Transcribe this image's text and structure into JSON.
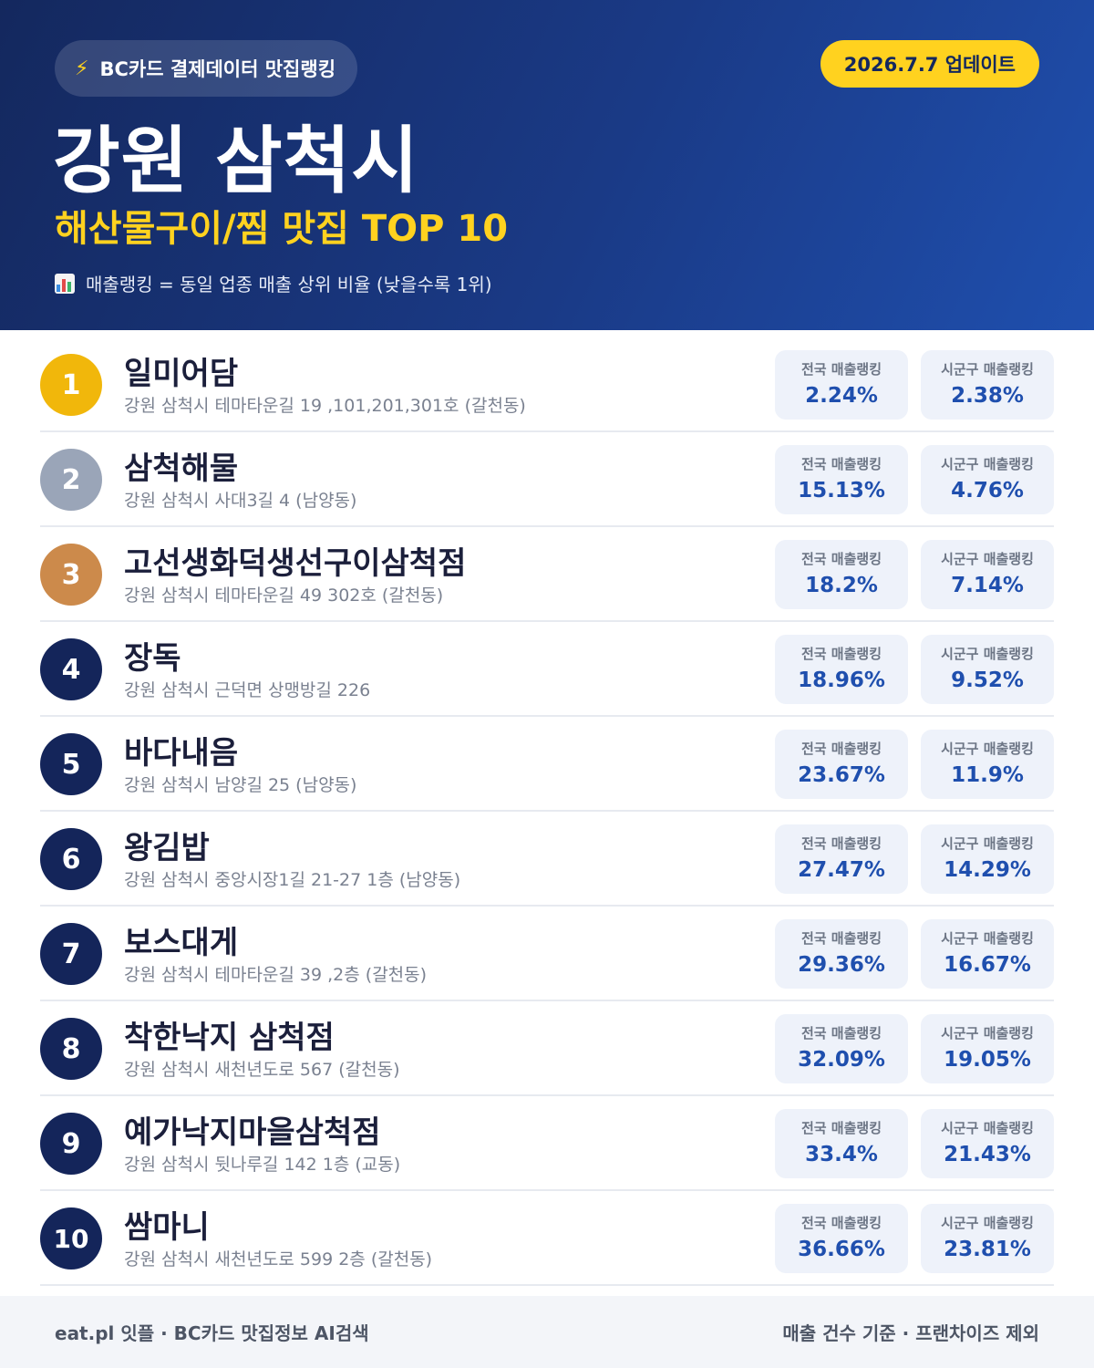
{
  "header": {
    "chip_label": "BC카드 결제데이터 맛집랭킹",
    "chip_icon": "lightning-bolt-icon",
    "update_label": "2026.7.7 업데이트",
    "city": "강원 삼척시",
    "subtitle": "해산물구이/찜 맛집 TOP 10",
    "note_icon": "bar-chart-icon",
    "note": "매출랭킹 = 동일 업종 매출 상위 비율 (낮을수록 1위)"
  },
  "colors": {
    "header_start": "#14285e",
    "header_end": "#1f4fae",
    "accent_yellow": "#ffd21f",
    "rank_gold": "#f1b70b",
    "rank_silver": "#9aa5b8",
    "rank_bronze": "#cc8a4b",
    "rank_default": "#14255a",
    "value_blue": "#1f4fae"
  },
  "stat_labels": {
    "national": "전국 매출랭킹",
    "local": "시군구 매출랭킹"
  },
  "restaurants": [
    {
      "rank": "1",
      "name": "일미어담",
      "address": "강원 삼척시 테마타운길 19 ,101,201,301호 (갈천동)",
      "national": "2.24%",
      "local": "2.38%"
    },
    {
      "rank": "2",
      "name": "삼척해물",
      "address": "강원 삼척시 사대3길 4 (남양동)",
      "national": "15.13%",
      "local": "4.76%"
    },
    {
      "rank": "3",
      "name": "고선생화덕생선구이삼척점",
      "address": "강원 삼척시 테마타운길 49 302호 (갈천동)",
      "national": "18.2%",
      "local": "7.14%"
    },
    {
      "rank": "4",
      "name": "장독",
      "address": "강원 삼척시 근덕면 상맹방길 226",
      "national": "18.96%",
      "local": "9.52%"
    },
    {
      "rank": "5",
      "name": "바다내음",
      "address": "강원 삼척시 남양길 25 (남양동)",
      "national": "23.67%",
      "local": "11.9%"
    },
    {
      "rank": "6",
      "name": "왕김밥",
      "address": "강원 삼척시 중앙시장1길 21-27 1층 (남양동)",
      "national": "27.47%",
      "local": "14.29%"
    },
    {
      "rank": "7",
      "name": "보스대게",
      "address": "강원 삼척시 테마타운길 39 ,2층 (갈천동)",
      "national": "29.36%",
      "local": "16.67%"
    },
    {
      "rank": "8",
      "name": "착한낙지 삼척점",
      "address": "강원 삼척시 새천년도로 567 (갈천동)",
      "national": "32.09%",
      "local": "19.05%"
    },
    {
      "rank": "9",
      "name": "예가낙지마을삼척점",
      "address": "강원 삼척시 뒷나루길 142 1층 (교동)",
      "national": "33.4%",
      "local": "21.43%"
    },
    {
      "rank": "10",
      "name": "쌈마니",
      "address": "강원 삼척시 새천년도로 599 2층 (갈천동)",
      "national": "36.66%",
      "local": "23.81%"
    }
  ],
  "footer": {
    "left": "eat.pl 잇플 · BC카드 맛집정보 AI검색",
    "right": "매출 건수 기준 · 프랜차이즈 제외"
  }
}
